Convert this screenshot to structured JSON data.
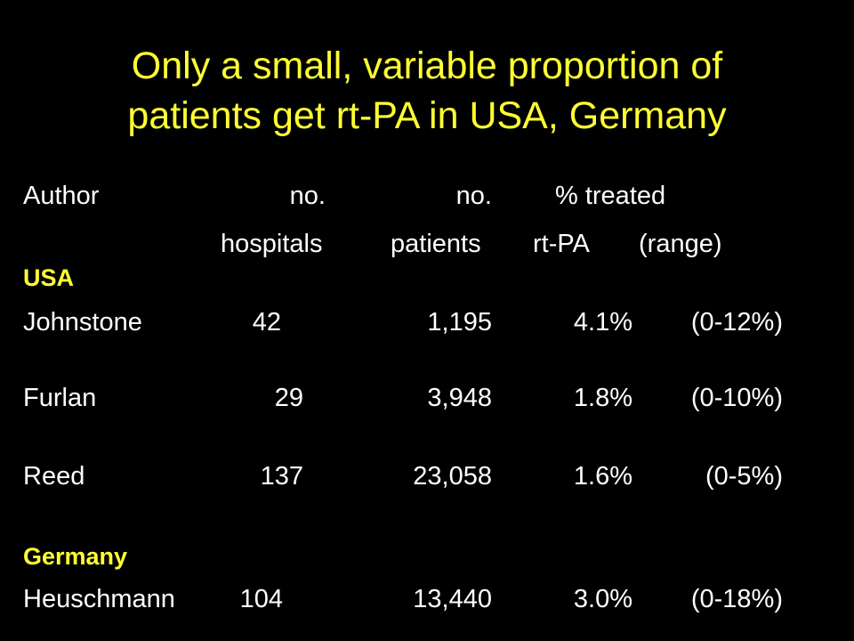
{
  "colors": {
    "background": "#000000",
    "title": "#FFFF33",
    "section": "#FFFF33",
    "text": "#FFFFFF"
  },
  "title": {
    "line1": "Only a small, variable proportion of",
    "line2": "patients get rt-PA in USA, Germany"
  },
  "header": {
    "author": "Author",
    "hospitals_line1": "no.",
    "hospitals_line2": "hospitals",
    "patients_line1": "no.",
    "patients_line2": "patients",
    "treated_line1": "% treated",
    "treated_line2": "rt-PA",
    "range": "(range)"
  },
  "sections": [
    {
      "label": "USA",
      "rows": [
        {
          "author": "Johnstone",
          "hospitals": "42",
          "patients": "1,195",
          "percent": "4.1%",
          "range": "(0-12%)"
        },
        {
          "author": "Furlan",
          "hospitals": "29",
          "patients": "3,948",
          "percent": "1.8%",
          "range": "(0-10%)"
        },
        {
          "author": "Reed",
          "hospitals": "137",
          "patients": "23,058",
          "percent": "1.6%",
          "range": "(0-5%)"
        }
      ]
    },
    {
      "label": "Germany",
      "rows": [
        {
          "author": "Heuschmann",
          "hospitals": "104",
          "patients": "13,440",
          "percent": "3.0%",
          "range": "(0-18%)"
        }
      ]
    }
  ]
}
